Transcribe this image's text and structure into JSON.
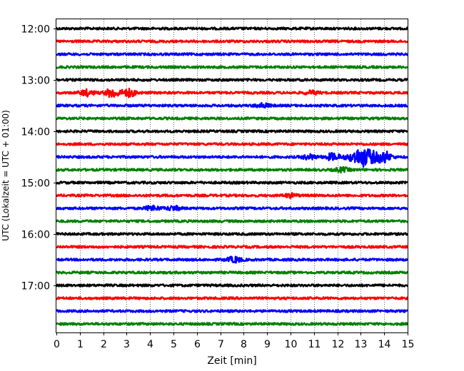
{
  "chart_data": {
    "type": "line",
    "title": "",
    "xlabel": "Zeit  [min]",
    "ylabel": "UTC (Lokalzeit = UTC + 01:00)",
    "xlim": [
      0,
      15
    ],
    "x_ticks": [
      "0",
      "1",
      "2",
      "3",
      "4",
      "5",
      "6",
      "7",
      "8",
      "9",
      "10",
      "11",
      "12",
      "13",
      "14",
      "15"
    ],
    "y_ticks": [
      "12:00",
      "13:00",
      "14:00",
      "15:00",
      "16:00",
      "17:00"
    ],
    "grid": "vertical dotted lines at each minute",
    "trace_interval_min": 15,
    "trace_colors": [
      "#000000",
      "#ff0000",
      "#0000ff",
      "#008000"
    ],
    "traces": [
      {
        "start": "12:00",
        "color": "#000000"
      },
      {
        "start": "12:15",
        "color": "#ff0000"
      },
      {
        "start": "12:30",
        "color": "#0000ff"
      },
      {
        "start": "12:45",
        "color": "#008000"
      },
      {
        "start": "13:00",
        "color": "#000000"
      },
      {
        "start": "13:15",
        "color": "#ff0000",
        "events": [
          {
            "t": 1.3,
            "amp": 0.45
          },
          {
            "t": 2.4,
            "amp": 0.7
          },
          {
            "t": 3.1,
            "amp": 0.55
          },
          {
            "t": 10.9,
            "amp": 0.25
          }
        ]
      },
      {
        "start": "13:30",
        "color": "#0000ff",
        "events": [
          {
            "t": 8.8,
            "amp": 0.3
          }
        ]
      },
      {
        "start": "13:45",
        "color": "#008000"
      },
      {
        "start": "14:00",
        "color": "#000000"
      },
      {
        "start": "14:15",
        "color": "#ff0000"
      },
      {
        "start": "14:30",
        "color": "#0000ff",
        "events": [
          {
            "t": 10.8,
            "amp": 0.35
          },
          {
            "t": 11.8,
            "amp": 0.5
          },
          {
            "t": 13.1,
            "amp": 1.4
          },
          {
            "t": 14.0,
            "amp": 0.8
          }
        ]
      },
      {
        "start": "14:45",
        "color": "#008000",
        "events": [
          {
            "t": 12.2,
            "amp": 0.3
          }
        ]
      },
      {
        "start": "15:00",
        "color": "#000000"
      },
      {
        "start": "15:15",
        "color": "#ff0000",
        "events": [
          {
            "t": 10.0,
            "amp": 0.25
          }
        ]
      },
      {
        "start": "15:30",
        "color": "#0000ff",
        "events": [
          {
            "t": 4.1,
            "amp": 0.35
          },
          {
            "t": 5.0,
            "amp": 0.3
          }
        ]
      },
      {
        "start": "15:45",
        "color": "#008000"
      },
      {
        "start": "16:00",
        "color": "#000000"
      },
      {
        "start": "16:15",
        "color": "#ff0000"
      },
      {
        "start": "16:30",
        "color": "#0000ff",
        "events": [
          {
            "t": 7.6,
            "amp": 0.4
          }
        ]
      },
      {
        "start": "16:45",
        "color": "#008000"
      },
      {
        "start": "17:00",
        "color": "#000000"
      },
      {
        "start": "17:15",
        "color": "#ff0000"
      },
      {
        "start": "17:30",
        "color": "#0000ff"
      },
      {
        "start": "17:45",
        "color": "#008000"
      }
    ]
  }
}
